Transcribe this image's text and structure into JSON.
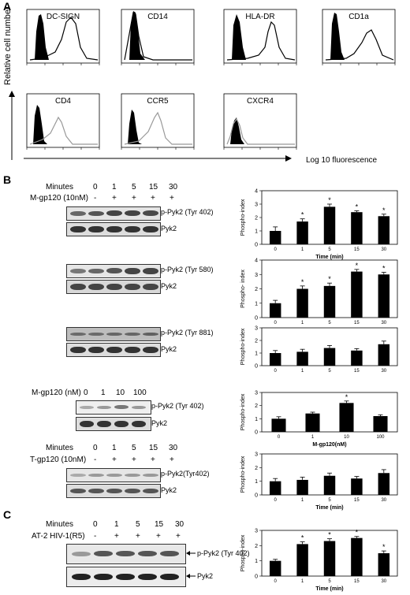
{
  "panelA": {
    "letter": "A",
    "ylabel": "Relative cell number",
    "xlabel": "Log 10 fluorescence",
    "histograms": [
      {
        "label": "DC-SIGN"
      },
      {
        "label": "CD14"
      },
      {
        "label": "HLA-DR"
      },
      {
        "label": "CD1a"
      },
      {
        "label": "CD4"
      },
      {
        "label": "CCR5"
      },
      {
        "label": "CXCR4"
      }
    ]
  },
  "panelB": {
    "letter": "B",
    "minutes_label": "Minutes",
    "time_points": [
      "0",
      "1",
      "5",
      "15",
      "30"
    ],
    "treatment_1": "M-gp120 (10nM)",
    "signs": [
      "-",
      "+",
      "+",
      "+",
      "+"
    ],
    "blot_labels": {
      "p402": "p-Pyk2 (Tyr 402)",
      "p580": "p-Pyk2 (Tyr 580)",
      "p881": "p-Pyk2 (Tyr 881)",
      "pyk2": "Pyk2",
      "p402_nospace": "p-Pyk2(Tyr402)"
    },
    "dose_label": "M-gp120 (nM)",
    "dose_points": [
      "0",
      "1",
      "10",
      "100"
    ],
    "treatment_2": "T-gp120 (10nM)"
  },
  "panelC": {
    "letter": "C",
    "minutes_label": "Minutes",
    "time_points": [
      "0",
      "1",
      "5",
      "15",
      "30"
    ],
    "treatment": "AT-2 HIV-1(R5)",
    "signs": [
      "-",
      "+",
      "+",
      "+",
      "+"
    ],
    "blot_top": "p-Pyk2 (Tyr 402)",
    "blot_bottom": "Pyk2"
  },
  "chart_data": [
    {
      "type": "bar",
      "ylabel": "Phospho-index",
      "xlabel": "Time (min)",
      "categories": [
        "0",
        "1",
        "5",
        "15",
        "30"
      ],
      "values": [
        1.0,
        1.7,
        2.8,
        2.4,
        2.1
      ],
      "errors": [
        0.3,
        0.2,
        0.2,
        0.1,
        0.15
      ],
      "significant": [
        false,
        true,
        true,
        true,
        true
      ],
      "ylim": [
        0,
        4
      ],
      "yticks": [
        "0",
        "1",
        "2",
        "3",
        "4"
      ]
    },
    {
      "type": "bar",
      "ylabel": "Phospho- index",
      "xlabel": "",
      "categories": [
        "0",
        "1",
        "5",
        "15",
        "30"
      ],
      "values": [
        1.0,
        2.0,
        2.2,
        3.2,
        3.0
      ],
      "errors": [
        0.2,
        0.2,
        0.2,
        0.15,
        0.15
      ],
      "significant": [
        false,
        true,
        true,
        true,
        true
      ],
      "ylim": [
        0,
        4
      ],
      "yticks": [
        "0",
        "1",
        "2",
        "3",
        "4"
      ]
    },
    {
      "type": "bar",
      "ylabel": "Phospho-index",
      "xlabel": "",
      "categories": [
        "0",
        "1",
        "5",
        "15",
        "30"
      ],
      "values": [
        1.0,
        1.1,
        1.4,
        1.2,
        1.7
      ],
      "errors": [
        0.2,
        0.2,
        0.2,
        0.15,
        0.25
      ],
      "significant": [
        false,
        false,
        false,
        false,
        false
      ],
      "ylim": [
        0,
        3
      ],
      "yticks": [
        "0",
        "1",
        "2",
        "3"
      ]
    },
    {
      "type": "bar",
      "ylabel": "Phospho-index",
      "xlabel": "M-gp120(nM)",
      "categories": [
        "0",
        "1",
        "10",
        "100"
      ],
      "values": [
        1.0,
        1.4,
        2.2,
        1.2
      ],
      "errors": [
        0.15,
        0.1,
        0.15,
        0.1
      ],
      "significant": [
        false,
        false,
        true,
        false
      ],
      "ylim": [
        0,
        3
      ],
      "yticks": [
        "0",
        "1",
        "2",
        "3"
      ]
    },
    {
      "type": "bar",
      "ylabel": "Phospho-index",
      "xlabel": "Time (min)",
      "categories": [
        "0",
        "1",
        "5",
        "15",
        "30"
      ],
      "values": [
        1.0,
        1.1,
        1.4,
        1.2,
        1.6
      ],
      "errors": [
        0.2,
        0.2,
        0.2,
        0.15,
        0.25
      ],
      "significant": [
        false,
        false,
        false,
        false,
        false
      ],
      "ylim": [
        0,
        3
      ],
      "yticks": [
        "0",
        "1",
        "2",
        "3"
      ]
    },
    {
      "type": "bar",
      "ylabel": "Phospho-index",
      "xlabel": "Time (min)",
      "categories": [
        "0",
        "1",
        "5",
        "15",
        "30"
      ],
      "values": [
        1.0,
        2.1,
        2.3,
        2.5,
        1.5
      ],
      "errors": [
        0.1,
        0.15,
        0.15,
        0.1,
        0.15
      ],
      "significant": [
        false,
        true,
        true,
        true,
        true
      ],
      "ylim": [
        0,
        3
      ],
      "yticks": [
        "0",
        "1",
        "2",
        "3"
      ]
    }
  ]
}
